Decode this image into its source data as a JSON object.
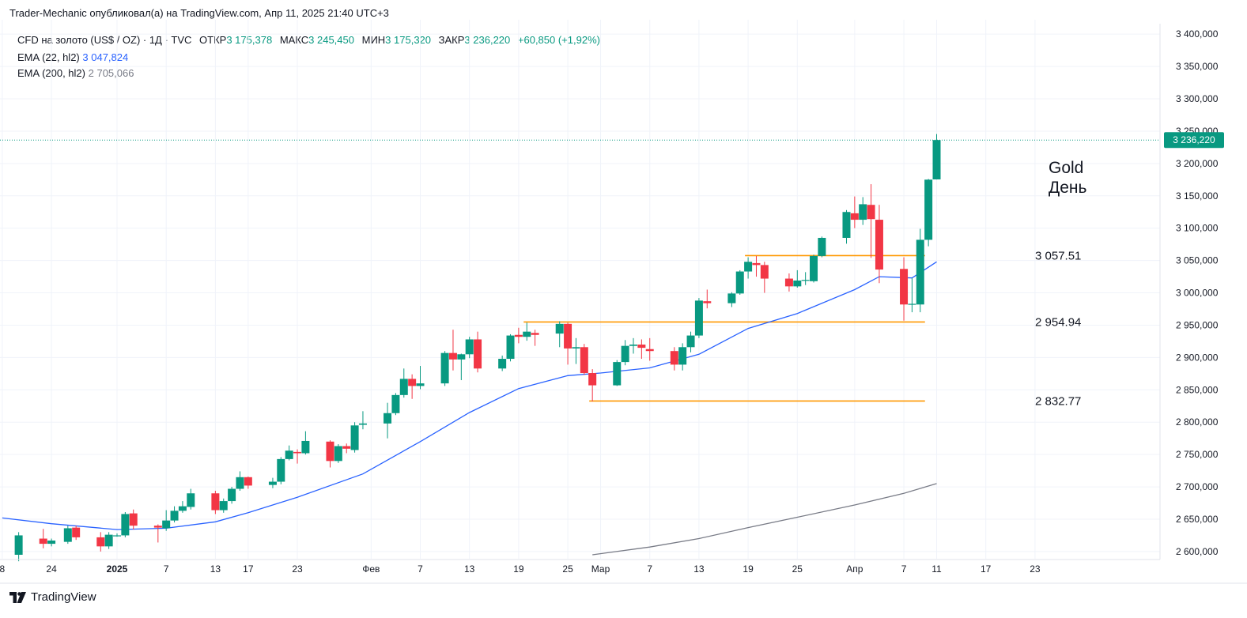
{
  "header": {
    "author": "Trader-Mechanic",
    "published_text": "опубликовал(а) на TradingView.com,",
    "timestamp": "Апр 11, 2025 21:40 UTC+3"
  },
  "legend": {
    "symbol": "CFD на золото (US$ / OZ) · 1Д · TVC",
    "open_label": "ОТКР",
    "open": "3 175,378",
    "high_label": "МАКС",
    "high": "3 245,450",
    "low_label": "МИН",
    "low": "3 175,320",
    "close_label": "ЗАКР",
    "close": "3 236,220",
    "change": "+60,850 (+1,92%)",
    "ema22_label": "EMA (22, hl2)",
    "ema22_value": "3 047,824",
    "ema200_label": "EMA (200, hl2)",
    "ema200_value": "2 705,066"
  },
  "footer": {
    "brand": "TradingView",
    "logo_icon": "tradingview-logo-icon"
  },
  "colors": {
    "up": "#089981",
    "down": "#f23645",
    "ema22": "#2962ff",
    "ema200": "#787b86",
    "level": "#ff9800",
    "grid": "#f0f3fa",
    "text": "#131722"
  },
  "chart_data": {
    "type": "candlestick",
    "title": "Gold",
    "subtitle": "День",
    "price_axis": {
      "ylim": [
        2595000,
        3410000
      ],
      "ticks": [
        2600000,
        2650000,
        2700000,
        2750000,
        2800000,
        2850000,
        2900000,
        2950000,
        3000000,
        3050000,
        3100000,
        3150000,
        3200000,
        3250000,
        3300000,
        3350000,
        3400000
      ],
      "tick_labels": [
        "2 600,000",
        "2 650,000",
        "2 700,000",
        "2 750,000",
        "2 800,000",
        "2 850,000",
        "2 900,000",
        "2 950,000",
        "3 000,000",
        "3 050,000",
        "3 100,000",
        "3 150,000",
        "3 200,000",
        "3 250,000",
        "3 300,000",
        "3 350,000",
        "3 400,000"
      ],
      "last_price_label": "3 236,220",
      "last_price": 3236220
    },
    "time_axis": {
      "labels": [
        {
          "date": "2024-12-18",
          "text": "8"
        },
        {
          "date": "2024-12-24",
          "text": "24"
        },
        {
          "date": "2025-01-01",
          "text": "2025"
        },
        {
          "date": "2025-01-07",
          "text": "7"
        },
        {
          "date": "2025-01-13",
          "text": "13"
        },
        {
          "date": "2025-01-17",
          "text": "17"
        },
        {
          "date": "2025-01-23",
          "text": "23"
        },
        {
          "date": "2025-02-01",
          "text": "Фев"
        },
        {
          "date": "2025-02-07",
          "text": "7"
        },
        {
          "date": "2025-02-13",
          "text": "13"
        },
        {
          "date": "2025-02-19",
          "text": "19"
        },
        {
          "date": "2025-02-25",
          "text": "25"
        },
        {
          "date": "2025-03-01",
          "text": "Мар"
        },
        {
          "date": "2025-03-07",
          "text": "7"
        },
        {
          "date": "2025-03-13",
          "text": "13"
        },
        {
          "date": "2025-03-19",
          "text": "19"
        },
        {
          "date": "2025-03-25",
          "text": "25"
        },
        {
          "date": "2025-04-01",
          "text": "Апр"
        },
        {
          "date": "2025-04-07",
          "text": "7"
        },
        {
          "date": "2025-04-11",
          "text": "11"
        },
        {
          "date": "2025-04-17",
          "text": "17"
        },
        {
          "date": "2025-04-23",
          "text": "23"
        }
      ]
    },
    "candles": [
      {
        "date": "2024-12-20",
        "o": 2595000,
        "h": 2630000,
        "l": 2585000,
        "c": 2625000
      },
      {
        "date": "2024-12-23",
        "o": 2620000,
        "h": 2635000,
        "l": 2605000,
        "c": 2612000
      },
      {
        "date": "2024-12-24",
        "o": 2612000,
        "h": 2620000,
        "l": 2608000,
        "c": 2617000
      },
      {
        "date": "2024-12-26",
        "o": 2615000,
        "h": 2640000,
        "l": 2612000,
        "c": 2636000
      },
      {
        "date": "2024-12-27",
        "o": 2637000,
        "h": 2640000,
        "l": 2618000,
        "c": 2622000
      },
      {
        "date": "2024-12-30",
        "o": 2622000,
        "h": 2630000,
        "l": 2600000,
        "c": 2608000
      },
      {
        "date": "2024-12-31",
        "o": 2608000,
        "h": 2630000,
        "l": 2604000,
        "c": 2626000
      },
      {
        "date": "2025-01-01",
        "o": 2624000,
        "h": 2628000,
        "l": 2623000,
        "c": 2625000
      },
      {
        "date": "2025-01-02",
        "o": 2625000,
        "h": 2661000,
        "l": 2622000,
        "c": 2658000
      },
      {
        "date": "2025-01-03",
        "o": 2659000,
        "h": 2665000,
        "l": 2634000,
        "c": 2640000
      },
      {
        "date": "2025-01-06",
        "o": 2640000,
        "h": 2642000,
        "l": 2614000,
        "c": 2637000
      },
      {
        "date": "2025-01-07",
        "o": 2636000,
        "h": 2664000,
        "l": 2632000,
        "c": 2648000
      },
      {
        "date": "2025-01-08",
        "o": 2648000,
        "h": 2670000,
        "l": 2645000,
        "c": 2663000
      },
      {
        "date": "2025-01-09",
        "o": 2663000,
        "h": 2678000,
        "l": 2660000,
        "c": 2670000
      },
      {
        "date": "2025-01-10",
        "o": 2669000,
        "h": 2697000,
        "l": 2665000,
        "c": 2690000
      },
      {
        "date": "2025-01-13",
        "o": 2690000,
        "h": 2694000,
        "l": 2658000,
        "c": 2664000
      },
      {
        "date": "2025-01-14",
        "o": 2664000,
        "h": 2682000,
        "l": 2660000,
        "c": 2678000
      },
      {
        "date": "2025-01-15",
        "o": 2678000,
        "h": 2700000,
        "l": 2674000,
        "c": 2697000
      },
      {
        "date": "2025-01-16",
        "o": 2697000,
        "h": 2724000,
        "l": 2694000,
        "c": 2715000
      },
      {
        "date": "2025-01-17",
        "o": 2715000,
        "h": 2716000,
        "l": 2697000,
        "c": 2702000
      },
      {
        "date": "2025-01-20",
        "o": 2703000,
        "h": 2714000,
        "l": 2698000,
        "c": 2708000
      },
      {
        "date": "2025-01-21",
        "o": 2708000,
        "h": 2746000,
        "l": 2704000,
        "c": 2743000
      },
      {
        "date": "2025-01-22",
        "o": 2743000,
        "h": 2764000,
        "l": 2741000,
        "c": 2756000
      },
      {
        "date": "2025-01-23",
        "o": 2754000,
        "h": 2758000,
        "l": 2736000,
        "c": 2752000
      },
      {
        "date": "2025-01-24",
        "o": 2752000,
        "h": 2786000,
        "l": 2750000,
        "c": 2771000
      },
      {
        "date": "2025-01-27",
        "o": 2770000,
        "h": 2772000,
        "l": 2730000,
        "c": 2740000
      },
      {
        "date": "2025-01-28",
        "o": 2740000,
        "h": 2766000,
        "l": 2737000,
        "c": 2763000
      },
      {
        "date": "2025-01-29",
        "o": 2763000,
        "h": 2767000,
        "l": 2752000,
        "c": 2759000
      },
      {
        "date": "2025-01-30",
        "o": 2757000,
        "h": 2800000,
        "l": 2753000,
        "c": 2795000
      },
      {
        "date": "2025-01-31",
        "o": 2796000,
        "h": 2817000,
        "l": 2789000,
        "c": 2798000
      },
      {
        "date": "2025-02-03",
        "o": 2798000,
        "h": 2830000,
        "l": 2775000,
        "c": 2814000
      },
      {
        "date": "2025-02-04",
        "o": 2814000,
        "h": 2845000,
        "l": 2811000,
        "c": 2842000
      },
      {
        "date": "2025-02-05",
        "o": 2842000,
        "h": 2883000,
        "l": 2838000,
        "c": 2867000
      },
      {
        "date": "2025-02-06",
        "o": 2867000,
        "h": 2874000,
        "l": 2836000,
        "c": 2856000
      },
      {
        "date": "2025-02-07",
        "o": 2856000,
        "h": 2887000,
        "l": 2851000,
        "c": 2860000
      },
      {
        "date": "2025-02-10",
        "o": 2860000,
        "h": 2910000,
        "l": 2856000,
        "c": 2907000
      },
      {
        "date": "2025-02-11",
        "o": 2907000,
        "h": 2943000,
        "l": 2880000,
        "c": 2897000
      },
      {
        "date": "2025-02-12",
        "o": 2897000,
        "h": 2906000,
        "l": 2865000,
        "c": 2905000
      },
      {
        "date": "2025-02-13",
        "o": 2905000,
        "h": 2932000,
        "l": 2899000,
        "c": 2928000
      },
      {
        "date": "2025-02-14",
        "o": 2928000,
        "h": 2940000,
        "l": 2877000,
        "c": 2883000
      },
      {
        "date": "2025-02-17",
        "o": 2883000,
        "h": 2903000,
        "l": 2879000,
        "c": 2898000
      },
      {
        "date": "2025-02-18",
        "o": 2898000,
        "h": 2936000,
        "l": 2894000,
        "c": 2934000
      },
      {
        "date": "2025-02-19",
        "o": 2935000,
        "h": 2946000,
        "l": 2922000,
        "c": 2932000
      },
      {
        "date": "2025-02-20",
        "o": 2932000,
        "h": 2954000,
        "l": 2926000,
        "c": 2940000
      },
      {
        "date": "2025-02-21",
        "o": 2938000,
        "h": 2943000,
        "l": 2918000,
        "c": 2935000
      },
      {
        "date": "2025-02-24",
        "o": 2937000,
        "h": 2956000,
        "l": 2916000,
        "c": 2952000
      },
      {
        "date": "2025-02-25",
        "o": 2952000,
        "h": 2954000,
        "l": 2889000,
        "c": 2914000
      },
      {
        "date": "2025-02-26",
        "o": 2914000,
        "h": 2930000,
        "l": 2890000,
        "c": 2916000
      },
      {
        "date": "2025-02-27",
        "o": 2916000,
        "h": 2921000,
        "l": 2873000,
        "c": 2876000
      },
      {
        "date": "2025-02-28",
        "o": 2876000,
        "h": 2882000,
        "l": 2832000,
        "c": 2857000
      },
      {
        "date": "2025-03-03",
        "o": 2857000,
        "h": 2896000,
        "l": 2856000,
        "c": 2893000
      },
      {
        "date": "2025-03-04",
        "o": 2893000,
        "h": 2927000,
        "l": 2888000,
        "c": 2918000
      },
      {
        "date": "2025-03-05",
        "o": 2918000,
        "h": 2930000,
        "l": 2906000,
        "c": 2920000
      },
      {
        "date": "2025-03-06",
        "o": 2920000,
        "h": 2928000,
        "l": 2898000,
        "c": 2915000
      },
      {
        "date": "2025-03-07",
        "o": 2913000,
        "h": 2930000,
        "l": 2895000,
        "c": 2910000
      },
      {
        "date": "2025-03-10",
        "o": 2910000,
        "h": 2916000,
        "l": 2880000,
        "c": 2889000
      },
      {
        "date": "2025-03-11",
        "o": 2889000,
        "h": 2922000,
        "l": 2880000,
        "c": 2916000
      },
      {
        "date": "2025-03-12",
        "o": 2916000,
        "h": 2940000,
        "l": 2908000,
        "c": 2934000
      },
      {
        "date": "2025-03-13",
        "o": 2934000,
        "h": 2992000,
        "l": 2930000,
        "c": 2988000
      },
      {
        "date": "2025-03-14",
        "o": 2987000,
        "h": 3005000,
        "l": 2976000,
        "c": 2984000
      },
      {
        "date": "2025-03-17",
        "o": 2984000,
        "h": 3001000,
        "l": 2978000,
        "c": 2999000
      },
      {
        "date": "2025-03-18",
        "o": 2999000,
        "h": 3035000,
        "l": 2997000,
        "c": 3033000
      },
      {
        "date": "2025-03-19",
        "o": 3033000,
        "h": 3055000,
        "l": 3022000,
        "c": 3048000
      },
      {
        "date": "2025-03-20",
        "o": 3046000,
        "h": 3057000,
        "l": 3025000,
        "c": 3043000
      },
      {
        "date": "2025-03-21",
        "o": 3043000,
        "h": 3048000,
        "l": 3000000,
        "c": 3022000
      },
      {
        "date": "2025-03-24",
        "o": 3022000,
        "h": 3030000,
        "l": 3002000,
        "c": 3010000
      },
      {
        "date": "2025-03-25",
        "o": 3010000,
        "h": 3035000,
        "l": 3008000,
        "c": 3019000
      },
      {
        "date": "2025-03-26",
        "o": 3019000,
        "h": 3032000,
        "l": 3012000,
        "c": 3020000
      },
      {
        "date": "2025-03-27",
        "o": 3018000,
        "h": 3059000,
        "l": 3016000,
        "c": 3057000
      },
      {
        "date": "2025-03-28",
        "o": 3057000,
        "h": 3087000,
        "l": 3055000,
        "c": 3085000
      },
      {
        "date": "2025-03-31",
        "o": 3085000,
        "h": 3128000,
        "l": 3076000,
        "c": 3125000
      },
      {
        "date": "2025-04-01",
        "o": 3123000,
        "h": 3149000,
        "l": 3100000,
        "c": 3113000
      },
      {
        "date": "2025-04-02",
        "o": 3113000,
        "h": 3148000,
        "l": 3105000,
        "c": 3137000
      },
      {
        "date": "2025-04-03",
        "o": 3136000,
        "h": 3168000,
        "l": 3054000,
        "c": 3114000
      },
      {
        "date": "2025-04-04",
        "o": 3113000,
        "h": 3136000,
        "l": 3015000,
        "c": 3036000
      },
      {
        "date": "2025-04-07",
        "o": 3037000,
        "h": 3055000,
        "l": 2957000,
        "c": 2982000
      },
      {
        "date": "2025-04-08",
        "o": 2982000,
        "h": 3023000,
        "l": 2970000,
        "c": 2983000
      },
      {
        "date": "2025-04-09",
        "o": 2982000,
        "h": 3099000,
        "l": 2970000,
        "c": 3082000
      },
      {
        "date": "2025-04-10",
        "o": 3082000,
        "h": 3176000,
        "l": 3072000,
        "c": 3175000
      },
      {
        "date": "2025-04-11",
        "o": 3175378,
        "h": 3245450,
        "l": 3175320,
        "c": 3236220
      }
    ],
    "ema22": [
      {
        "date": "2024-12-18",
        "v": 2652000
      },
      {
        "date": "2024-12-24",
        "v": 2643000
      },
      {
        "date": "2025-01-01",
        "v": 2634000
      },
      {
        "date": "2025-01-07",
        "v": 2636000
      },
      {
        "date": "2025-01-13",
        "v": 2646000
      },
      {
        "date": "2025-01-17",
        "v": 2660000
      },
      {
        "date": "2025-01-23",
        "v": 2684000
      },
      {
        "date": "2025-01-31",
        "v": 2720000
      },
      {
        "date": "2025-02-07",
        "v": 2770000
      },
      {
        "date": "2025-02-13",
        "v": 2815000
      },
      {
        "date": "2025-02-19",
        "v": 2852000
      },
      {
        "date": "2025-02-25",
        "v": 2872000
      },
      {
        "date": "2025-03-01",
        "v": 2876000
      },
      {
        "date": "2025-03-07",
        "v": 2884000
      },
      {
        "date": "2025-03-13",
        "v": 2905000
      },
      {
        "date": "2025-03-19",
        "v": 2945000
      },
      {
        "date": "2025-03-25",
        "v": 2968000
      },
      {
        "date": "2025-04-01",
        "v": 3005000
      },
      {
        "date": "2025-04-04",
        "v": 3025000
      },
      {
        "date": "2025-04-08",
        "v": 3023000
      },
      {
        "date": "2025-04-11",
        "v": 3048000
      }
    ],
    "ema200": [
      {
        "date": "2025-02-28",
        "v": 2595000
      },
      {
        "date": "2025-03-07",
        "v": 2607000
      },
      {
        "date": "2025-03-13",
        "v": 2620000
      },
      {
        "date": "2025-03-19",
        "v": 2637000
      },
      {
        "date": "2025-03-25",
        "v": 2653000
      },
      {
        "date": "2025-04-01",
        "v": 2672000
      },
      {
        "date": "2025-04-07",
        "v": 2690000
      },
      {
        "date": "2025-04-11",
        "v": 2705066
      }
    ],
    "levels": [
      {
        "price": 3057510,
        "label": "3 057.51",
        "from": "2025-03-19",
        "to": "2025-04-09"
      },
      {
        "price": 2954940,
        "label": "2 954.94",
        "from": "2025-02-20",
        "to": "2025-04-09"
      },
      {
        "price": 2832770,
        "label": "2 832.77",
        "from": "2025-02-28",
        "to": "2025-04-09"
      }
    ]
  }
}
